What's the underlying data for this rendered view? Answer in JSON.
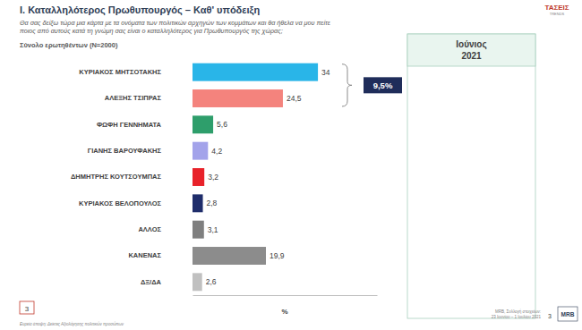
{
  "chart_data": {
    "type": "bar",
    "orientation": "horizontal",
    "title": "I. Καταλληλότερος  Πρωθυπουργός – Καθ' υπόδειξη",
    "subtitle": [
      "Θα σας δείξω τώρα μια κάρτα με τα ονόματα των πολιτικών αρχηγών των κομμάτων και θα ήθελα να μου πείτε",
      "ποιος από αυτούς κατά τη γνώμη σας είναι ο καταλληλότερος για Πρωθυπουργός της χώρας;"
    ],
    "note": "Σύνολο ερωτηθέντων (N=2000)",
    "panel_title": [
      "Ιούνιος",
      "2021"
    ],
    "categories": [
      "ΚΥΡΙΑΚΟΣ ΜΗΤΣΟΤΑΚΗΣ",
      "ΑΛΕΞΗΣ ΤΣΙΠΡΑΣ",
      "ΦΩΦΗ ΓΕΝΝΗΜΑΤΑ",
      "ΓΙΑΝΗΣ ΒΑΡΟΥΦΑΚΗΣ",
      "ΔΗΜΗΤΡΗΣ ΚΟΥΤΣΟΥΜΠΑΣ",
      "ΚΥΡΙΑΚΟΣ ΒΕΛΟΠΟΥΛΟΣ",
      "ΑΛΛΟΣ",
      "ΚΑΝΕΝΑΣ",
      "ΔΞ/ΔΑ"
    ],
    "values": [
      34,
      24.5,
      5.6,
      4.2,
      3.2,
      2.8,
      3.1,
      19.9,
      2.6
    ],
    "value_labels": [
      "34",
      "24,5",
      "5,6",
      "4,2",
      "3,2",
      "2,8",
      "3,1",
      "19,9",
      "2,6"
    ],
    "colors": [
      "#29b5e8",
      "#f4837d",
      "#2e9e6b",
      "#a3a3ea",
      "#e8222a",
      "#1f2d6b",
      "#7f7f7f",
      "#8c8c8c",
      "#c0c0c0"
    ],
    "xlim": [
      0,
      50
    ],
    "xticks": [],
    "x_label": "%",
    "data_labels": true,
    "tick_labels": "y",
    "grid": false,
    "annotation": "9,5%",
    "logo": [
      "ΤΑΣΕΙΣ",
      "TRENDS",
      "MRB"
    ],
    "page_number": "3",
    "footer_left": "Ευρεία άποψη: Δείκτες Αξιολόγησης πολιτικών προσώπων",
    "footer_right": [
      "MRB, Συλλογή στοιχείων:",
      "23 Ιουνίου – 1 Ιουλίου 2021"
    ]
  }
}
